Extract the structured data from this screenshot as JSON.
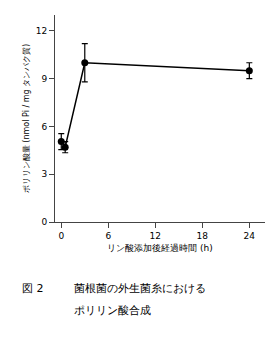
{
  "chart_data": {
    "type": "line",
    "x": [
      0,
      0.5,
      3,
      24
    ],
    "values": [
      5.05,
      4.7,
      10.0,
      9.5
    ],
    "yerr": [
      0.5,
      0.35,
      1.2,
      0.5
    ],
    "xlim": [
      -0.8,
      26
    ],
    "ylim": [
      0,
      13
    ],
    "xticks": [
      0,
      6,
      12,
      18,
      24
    ],
    "yticks": [
      0,
      3,
      6,
      9,
      12
    ],
    "xlabel": "リン酸添加後経過時間 (h)",
    "ylabel": "ポリリン酸量 (nmol Pi / mg タンパク質)",
    "annotations": [
      "図 2",
      "菌根菌の外生菌糸における",
      "ポリリン酸合成"
    ],
    "color": "black",
    "marker": "circle",
    "grid": false
  }
}
